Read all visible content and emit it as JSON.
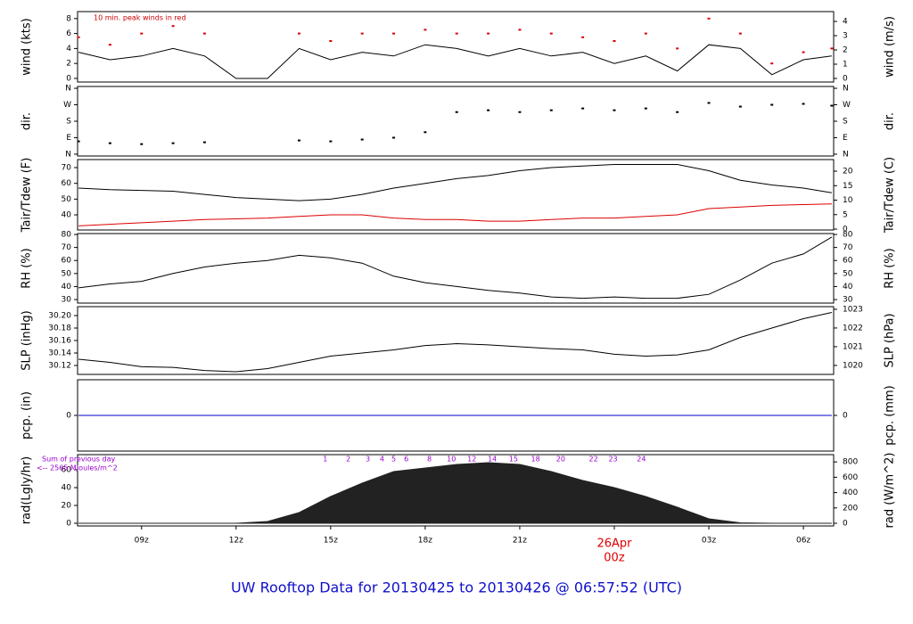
{
  "chart_data": {
    "type": "multi-panel",
    "title": "UW Rooftop Data for 20130425  to  20130426 @ 06:57:52  (UTC)",
    "x": [
      7,
      8,
      9,
      10,
      11,
      12,
      13,
      14,
      15,
      16,
      17,
      18,
      19,
      20,
      21,
      22,
      23,
      24,
      25,
      26,
      27,
      28,
      29,
      30,
      30.9
    ],
    "xlim": [
      6.97,
      30.96
    ],
    "xticks": [
      {
        "value": 9,
        "label": "09z"
      },
      {
        "value": 12,
        "label": "12z"
      },
      {
        "value": 15,
        "label": "15z"
      },
      {
        "value": 18,
        "label": "18z"
      },
      {
        "value": 21,
        "label": "21z"
      },
      {
        "value": 24,
        "label": "00z"
      },
      {
        "value": 27,
        "label": "03z"
      },
      {
        "value": 30,
        "label": "06z"
      }
    ],
    "date_label": {
      "value": 24,
      "label": "26Apr"
    },
    "date_color": "#dd0000",
    "panels": [
      {
        "type": "line",
        "y_label": "wind (kts)",
        "y2_label": "wind (m/s)",
        "annotation": "10 min. peak winds in red",
        "annotation_color": "#cc0000",
        "ylim": [
          -0.48,
          8.93
        ],
        "yticks": [
          0,
          2,
          4,
          6,
          8
        ],
        "y2lim": [
          -0.25,
          4.69
        ],
        "y2ticks": [
          0,
          1,
          2,
          3,
          4
        ],
        "series": [
          {
            "color": "#000000",
            "style": "line",
            "values": [
              3.5,
              2.5,
              3,
              4,
              3,
              0,
              0,
              4,
              2.5,
              3.5,
              3,
              4.5,
              4,
              3,
              4,
              3,
              3.5,
              2,
              3,
              1,
              4.5,
              4,
              0.5,
              2.5,
              3
            ]
          },
          {
            "color": "#dd0000",
            "style": "dots",
            "values": [
              5.5,
              4.5,
              6,
              7,
              6,
              null,
              null,
              6,
              5,
              6,
              6,
              6.5,
              6,
              6,
              6.5,
              6,
              5.5,
              5,
              6,
              4,
              8,
              6,
              2,
              3.5,
              4
            ]
          }
        ]
      },
      {
        "type": "line",
        "y_label": "dir.",
        "y2_label": "dir.",
        "ylim": [
          -10,
          370
        ],
        "yticks": [
          {
            "value": 0,
            "label": "N"
          },
          {
            "value": 90,
            "label": "E"
          },
          {
            "value": 180,
            "label": "S"
          },
          {
            "value": 270,
            "label": "W"
          },
          {
            "value": 360,
            "label": "N"
          }
        ],
        "y2lim": [
          -10,
          370
        ],
        "y2ticks": [
          {
            "value": 0,
            "label": "N"
          },
          {
            "value": 90,
            "label": "E"
          },
          {
            "value": 180,
            "label": "S"
          },
          {
            "value": 270,
            "label": "W"
          },
          {
            "value": 360,
            "label": "N"
          }
        ],
        "series": [
          {
            "color": "#000000",
            "style": "dots",
            "values": [
              70,
              60,
              55,
              60,
              65,
              null,
              null,
              75,
              70,
              80,
              90,
              120,
              230,
              240,
              230,
              240,
              250,
              240,
              250,
              230,
              280,
              260,
              270,
              275,
              265
            ]
          }
        ]
      },
      {
        "type": "line",
        "y_label": "Tair/Tdew (F)",
        "y2_label": "Tair/Tdew (C)",
        "ylim": [
          30.4,
          75.1
        ],
        "yticks": [
          40,
          50,
          60,
          70
        ],
        "y2lim": [
          -0.3,
          24
        ],
        "y2ticks": [
          0,
          5,
          10,
          15,
          20
        ],
        "series": [
          {
            "color": "#000000",
            "style": "line",
            "values": [
              57,
              56,
              55.5,
              55,
              53,
              51,
              50,
              49,
              50,
              53,
              57,
              60,
              63,
              65,
              68,
              70,
              71,
              72,
              72,
              72,
              68,
              62,
              59,
              57,
              54
            ]
          },
          {
            "color": "#dd0000",
            "style": "line",
            "values": [
              33,
              34,
              35,
              36,
              37,
              37.5,
              38,
              39,
              40,
              40,
              38,
              37,
              37,
              36,
              36,
              37,
              38,
              38,
              39,
              40,
              44,
              45,
              46,
              46.5,
              47
            ]
          }
        ]
      },
      {
        "type": "line",
        "y_label": "RH (%)",
        "y2_label": "RH (%)",
        "ylim": [
          27.3,
          80.7
        ],
        "yticks": [
          30,
          40,
          50,
          60,
          70,
          80
        ],
        "y2lim": [
          27.3,
          80.7
        ],
        "y2ticks": [
          30,
          40,
          50,
          60,
          70,
          80
        ],
        "series": [
          {
            "color": "#000000",
            "style": "line",
            "values": [
              39,
              42,
              44,
              50,
              55,
              58,
              60,
              64,
              62,
              58,
              48,
              43,
              40,
              37,
              35,
              32,
              31,
              32,
              31,
              31,
              34,
              45,
              58,
              65,
              78
            ]
          }
        ]
      },
      {
        "type": "line",
        "y_label": "SLP (inHg)",
        "y2_label": "SLP (hPa)",
        "ylim": [
          30.1057,
          30.2143
        ],
        "yticks": [
          {
            "value": 30.12,
            "label": "30.12"
          },
          30.14,
          30.16,
          30.18,
          {
            "value": 30.2,
            "label": "30.20"
          }
        ],
        "y2lim": [
          1019.52,
          1023.14
        ],
        "y2ticks": [
          1020,
          1021,
          1022,
          1023
        ],
        "series": [
          {
            "color": "#000000",
            "style": "line",
            "values": [
              30.13,
              30.125,
              30.118,
              30.117,
              30.112,
              30.11,
              30.115,
              30.125,
              30.135,
              30.14,
              30.145,
              30.152,
              30.155,
              30.153,
              30.15,
              30.147,
              30.145,
              30.138,
              30.135,
              30.137,
              30.145,
              30.165,
              30.18,
              30.195,
              30.205
            ]
          }
        ]
      },
      {
        "type": "line",
        "y_label": "pcp. (in)",
        "y2_label": "pcp. (mm)",
        "ylim": [
          -1,
          1
        ],
        "yticks": [
          0
        ],
        "y2lim": [
          -1,
          1
        ],
        "y2ticks": [
          0
        ],
        "series": [
          {
            "color": "#0000cc",
            "style": "line",
            "values": [
              0,
              0,
              0,
              0,
              0,
              0,
              0,
              0,
              0,
              0,
              0,
              0,
              0,
              0,
              0,
              0,
              0,
              0,
              0,
              0,
              0,
              0,
              0,
              0,
              0
            ]
          }
        ]
      },
      {
        "type": "area",
        "y_label": "rad(Lgly/hr)",
        "y2_label": "rad (W/m^2)",
        "note_1": "Sum of previous day",
        "note_2": "<-- 2565 MJoules/m^2",
        "note_color": "#9900cc",
        "ylim": [
          -3,
          77
        ],
        "yticks": [
          0,
          20,
          40,
          60
        ],
        "y2lim": [
          -34.9,
          895
        ],
        "y2ticks": [
          0,
          200,
          400,
          600,
          800
        ],
        "series": [
          {
            "color": "#222222",
            "style": "area",
            "values": [
              0,
              0,
              0,
              0,
              0,
              0,
              2,
              12,
              30,
              45,
              58,
              62,
              66,
              68,
              66,
              58,
              48,
              40,
              30,
              18,
              5,
              0.5,
              0,
              0,
              0
            ]
          }
        ],
        "marks": {
          "x": [
            14.83,
            15.56,
            16.18,
            16.63,
            17.0,
            17.4,
            18.13,
            18.83,
            19.48,
            20.13,
            20.8,
            21.5,
            22.3,
            23.34,
            23.96,
            24.86
          ],
          "labels": [
            1,
            2,
            3,
            4,
            5,
            6,
            8,
            10,
            12,
            14,
            15,
            18,
            20,
            22,
            23,
            24
          ]
        }
      }
    ]
  }
}
